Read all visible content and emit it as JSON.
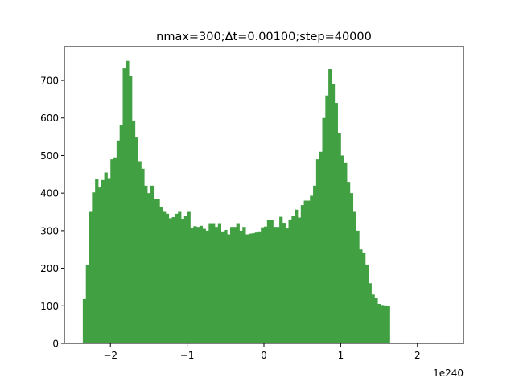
{
  "chart_data": {
    "type": "bar",
    "title": "nmax=300;Δt=0.00100;step=40000",
    "xlabel": "",
    "ylabel": "",
    "x_scale_note": "1e240",
    "xlim": [
      -2.6,
      2.6
    ],
    "ylim": [
      0,
      790
    ],
    "x_ticks": [
      -2,
      -1,
      0,
      1,
      2
    ],
    "x_tick_labels": [
      "−2",
      "−1",
      "0",
      "1",
      "2"
    ],
    "y_ticks": [
      0,
      100,
      200,
      300,
      400,
      500,
      600,
      700
    ],
    "y_tick_labels": [
      "0",
      "100",
      "200",
      "300",
      "400",
      "500",
      "600",
      "700"
    ],
    "bin_start": -2.36,
    "bin_width": 0.04,
    "values": [
      118,
      208,
      350,
      402,
      437,
      415,
      435,
      455,
      440,
      490,
      495,
      540,
      582,
      732,
      752,
      712,
      592,
      550,
      485,
      465,
      420,
      400,
      420,
      384,
      385,
      364,
      350,
      345,
      333,
      336,
      345,
      350,
      332,
      340,
      350,
      308,
      312,
      310,
      313,
      305,
      300,
      320,
      320,
      310,
      320,
      298,
      302,
      290,
      310,
      310,
      320,
      300,
      310,
      290,
      292,
      293,
      295,
      298,
      309,
      311,
      328,
      328,
      310,
      310,
      337,
      321,
      306,
      330,
      340,
      356,
      335,
      368,
      380,
      380,
      393,
      420,
      490,
      510,
      600,
      660,
      730,
      690,
      640,
      560,
      500,
      480,
      430,
      400,
      350,
      300,
      250,
      240,
      210,
      160,
      130,
      120,
      105,
      102,
      101,
      100
    ],
    "bar_color": "#41a042",
    "grid": false,
    "legend": "none"
  }
}
